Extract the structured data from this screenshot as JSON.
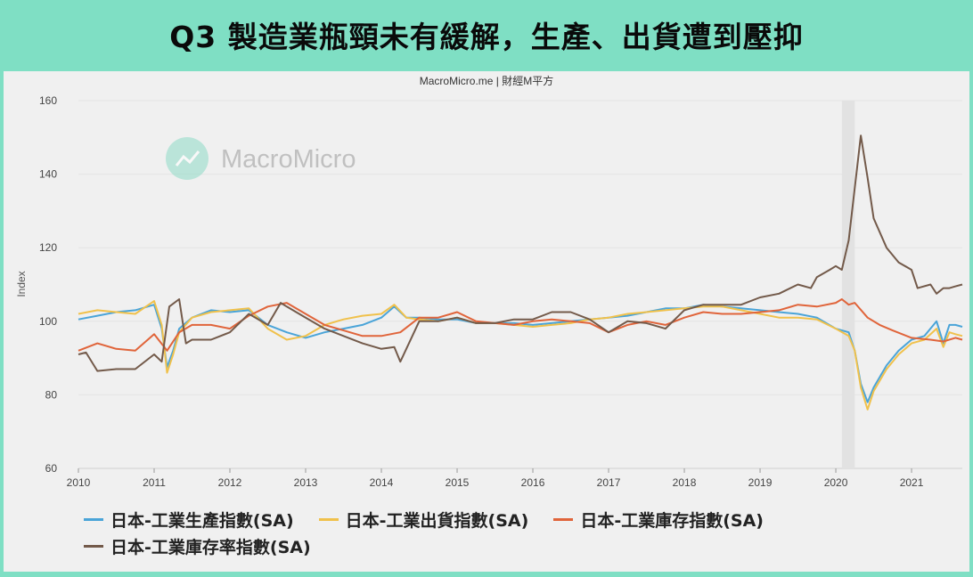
{
  "headline": "Q3 製造業瓶頸未有緩解，生產、出貨遭到壓抑",
  "chart_data": {
    "type": "line",
    "source_label": "MacroMicro.me | 財經M平方",
    "watermark": "MacroMicro",
    "ylabel": "Index",
    "ylim": [
      60,
      160
    ],
    "yticks": [
      60,
      80,
      100,
      120,
      140,
      160
    ],
    "xlim": [
      2010,
      2021.67
    ],
    "xticks": [
      "2010",
      "2011",
      "2012",
      "2013",
      "2014",
      "2015",
      "2016",
      "2017",
      "2018",
      "2019",
      "2020",
      "2021"
    ],
    "grid": true,
    "legend_position": "bottom",
    "highlight_band": [
      2020.08,
      2020.25
    ],
    "series": [
      {
        "name": "日本-工業生產指數(SA)",
        "color": "#4aa4d8",
        "x": [
          2010,
          2010.25,
          2010.5,
          2010.75,
          2011,
          2011.1,
          2011.17,
          2011.25,
          2011.33,
          2011.5,
          2011.75,
          2012,
          2012.25,
          2012.5,
          2012.75,
          2013,
          2013.25,
          2013.5,
          2013.75,
          2014,
          2014.17,
          2014.33,
          2014.5,
          2014.75,
          2015,
          2015.25,
          2015.5,
          2015.75,
          2016,
          2016.25,
          2016.5,
          2016.75,
          2017,
          2017.25,
          2017.5,
          2017.75,
          2018,
          2018.25,
          2018.5,
          2018.75,
          2019,
          2019.25,
          2019.5,
          2019.75,
          2020,
          2020.17,
          2020.25,
          2020.33,
          2020.42,
          2020.5,
          2020.67,
          2020.83,
          2021,
          2021.17,
          2021.33,
          2021.42,
          2021.5,
          2021.58,
          2021.67
        ],
        "values": [
          100.5,
          101.5,
          102.5,
          103,
          104.5,
          98,
          87.5,
          92,
          98,
          101,
          103,
          102.5,
          103,
          99,
          97,
          95.5,
          97,
          98,
          99,
          101,
          104,
          101,
          101,
          100.5,
          100.5,
          99.5,
          99.5,
          99.5,
          99,
          99.5,
          100,
          100.5,
          101,
          101.5,
          102.5,
          103.5,
          103.5,
          104.5,
          104,
          103.5,
          103,
          102.5,
          102,
          101,
          98,
          97,
          92,
          83,
          78,
          82,
          88,
          92,
          95,
          96,
          100,
          94,
          99,
          99,
          98.5
        ]
      },
      {
        "name": "日本-工業出貨指數(SA)",
        "color": "#f0c14b",
        "x": [
          2010,
          2010.25,
          2010.5,
          2010.75,
          2011,
          2011.1,
          2011.17,
          2011.25,
          2011.33,
          2011.5,
          2011.75,
          2012,
          2012.25,
          2012.5,
          2012.75,
          2013,
          2013.25,
          2013.5,
          2013.75,
          2014,
          2014.17,
          2014.33,
          2014.5,
          2014.75,
          2015,
          2015.25,
          2015.5,
          2015.75,
          2016,
          2016.25,
          2016.5,
          2016.75,
          2017,
          2017.25,
          2017.5,
          2017.75,
          2018,
          2018.25,
          2018.5,
          2018.75,
          2019,
          2019.25,
          2019.5,
          2019.75,
          2020,
          2020.17,
          2020.25,
          2020.33,
          2020.42,
          2020.5,
          2020.67,
          2020.83,
          2021,
          2021.17,
          2021.33,
          2021.42,
          2021.5,
          2021.58,
          2021.67
        ],
        "values": [
          102,
          103,
          102.5,
          102,
          105.5,
          99,
          86,
          91,
          97,
          101,
          102.5,
          103,
          103.5,
          98,
          95,
          96,
          99,
          100.5,
          101.5,
          102,
          104.5,
          101,
          100.5,
          100,
          101,
          99.5,
          99.5,
          99,
          98.5,
          99,
          99.5,
          100.5,
          101,
          102,
          102.5,
          103,
          103.5,
          104,
          104,
          103,
          102,
          101,
          101,
          100.5,
          98,
          96,
          92,
          82,
          76,
          81,
          87,
          91,
          94,
          95,
          98,
          93,
          97,
          96.5,
          96
        ]
      },
      {
        "name": "日本-工業庫存指數(SA)",
        "color": "#e0643a",
        "x": [
          2010,
          2010.25,
          2010.5,
          2010.75,
          2011,
          2011.17,
          2011.33,
          2011.5,
          2011.75,
          2012,
          2012.25,
          2012.5,
          2012.75,
          2013,
          2013.25,
          2013.5,
          2013.75,
          2014,
          2014.25,
          2014.5,
          2014.75,
          2015,
          2015.25,
          2015.5,
          2015.75,
          2016,
          2016.25,
          2016.5,
          2016.75,
          2017,
          2017.25,
          2017.5,
          2017.75,
          2018,
          2018.25,
          2018.5,
          2018.75,
          2019,
          2019.25,
          2019.5,
          2019.75,
          2020,
          2020.08,
          2020.17,
          2020.25,
          2020.42,
          2020.58,
          2020.75,
          2021,
          2021.25,
          2021.42,
          2021.58,
          2021.67
        ],
        "values": [
          92,
          94,
          92.5,
          92,
          96.5,
          92,
          97,
          99,
          99,
          98,
          101.5,
          104,
          105,
          102,
          99,
          97.5,
          96,
          96,
          97,
          101,
          101,
          102.5,
          100,
          99.5,
          99,
          100,
          100.5,
          100,
          99.5,
          97,
          99,
          100,
          99,
          101,
          102.5,
          102,
          102,
          102.5,
          103,
          104.5,
          104,
          105,
          106,
          104.5,
          105,
          101,
          99,
          97.5,
          95.5,
          95,
          94.5,
          95.5,
          95
        ]
      },
      {
        "name": "日本-工業庫存率指數(SA)",
        "color": "#735a4a",
        "x": [
          2010,
          2010.1,
          2010.25,
          2010.5,
          2010.75,
          2011,
          2011.1,
          2011.2,
          2011.33,
          2011.42,
          2011.5,
          2011.75,
          2012,
          2012.25,
          2012.5,
          2012.67,
          2012.75,
          2013,
          2013.25,
          2013.5,
          2013.75,
          2014,
          2014.17,
          2014.25,
          2014.5,
          2014.75,
          2015,
          2015.25,
          2015.5,
          2015.75,
          2016,
          2016.25,
          2016.5,
          2016.75,
          2017,
          2017.25,
          2017.5,
          2017.75,
          2018,
          2018.25,
          2018.5,
          2018.75,
          2019,
          2019.25,
          2019.5,
          2019.67,
          2019.75,
          2019.92,
          2020,
          2020.08,
          2020.17,
          2020.33,
          2020.42,
          2020.5,
          2020.67,
          2020.83,
          2021,
          2021.08,
          2021.25,
          2021.33,
          2021.42,
          2021.5,
          2021.58,
          2021.67
        ],
        "values": [
          91,
          91.5,
          86.5,
          87,
          87,
          91,
          89,
          104,
          106,
          94,
          95,
          95,
          97,
          102,
          99,
          105,
          104,
          101,
          98,
          96,
          94,
          92.5,
          93,
          89,
          100,
          100,
          101,
          99.5,
          99.5,
          100.5,
          100.5,
          102.5,
          102.5,
          100.5,
          97,
          100,
          99.5,
          98,
          103,
          104.5,
          104.5,
          104.5,
          106.5,
          107.5,
          110,
          109,
          112,
          114,
          115,
          114,
          122,
          150.5,
          139,
          128,
          120,
          116,
          114,
          109,
          110,
          107.5,
          109,
          109,
          109.5,
          110
        ]
      }
    ]
  }
}
